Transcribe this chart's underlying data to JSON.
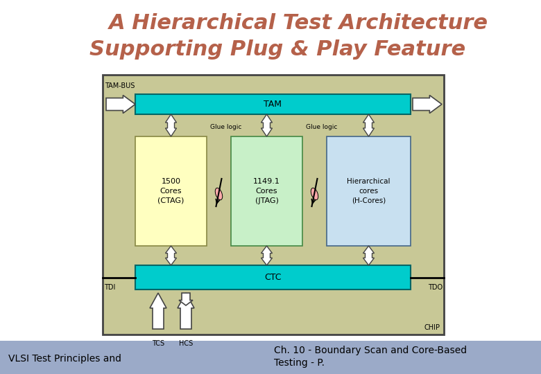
{
  "title_line1": "A Hierarchical Test Architecture",
  "title_line2": "Supporting Plug & Play Feature",
  "title_color": "#B5614A",
  "title_fontsize": 22,
  "bg_color": "#FFFFFF",
  "footer_bg": "#9BAAC8",
  "footer_left": "VLSI Test Principles and",
  "footer_right1": "Ch. 10 - Boundary Scan and Core-Based",
  "footer_right2": "Testing - P.",
  "footer_fontsize": 10,
  "chip_bg": "#C8C896",
  "chip_border": "#444444",
  "tam_color": "#00CCCC",
  "ctc_color": "#00CCCC",
  "core1_color": "#FFFFC0",
  "core2_color": "#C8F0C8",
  "core3_color": "#C8E0F0",
  "diagram_labels": {
    "tam_bus": "TAM-BUS",
    "tam": "TAM",
    "ctc": "CTC",
    "chip": "CHIP",
    "tdi": "TDI",
    "tdo": "TDO",
    "tcs": "TCS",
    "hcs": "HCS",
    "glue1": "Glue logic",
    "glue2": "Glue logic",
    "core1_line1": "1500",
    "core1_line2": "Cores",
    "core1_line3": "(CTAG)",
    "core2_line1": "1149.1",
    "core2_line2": "Cores",
    "core2_line3": "(JTAG)",
    "core3_line1": "Hierarchical",
    "core3_line2": "cores",
    "core3_line3": "(H-Cores)"
  },
  "diagram": {
    "ox": 148,
    "oy": 108,
    "ow": 492,
    "oh": 375
  }
}
